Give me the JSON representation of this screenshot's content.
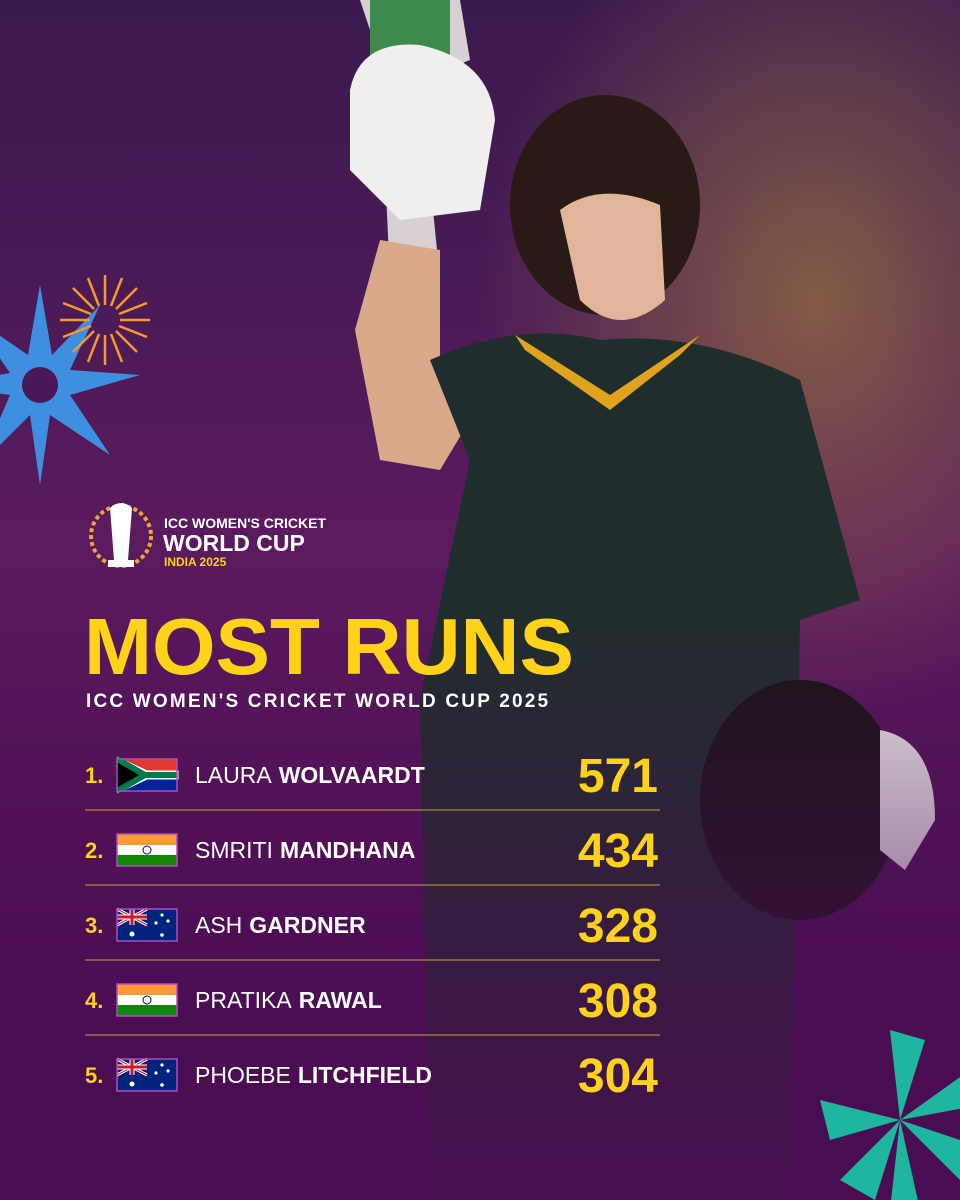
{
  "logo": {
    "line1": "ICC WOMEN'S CRICKET",
    "line2": "WORLD CUP",
    "line3": "INDIA 2025"
  },
  "title": "MOST RUNS",
  "subtitle": "ICC WOMEN'S CRICKET WORLD CUP 2025",
  "rows": [
    {
      "rank": "1.",
      "first": "LAURA",
      "last": "WOLVAARDT",
      "runs": "571"
    },
    {
      "rank": "2.",
      "first": "SMRITI",
      "last": "MANDHANA",
      "runs": "434"
    },
    {
      "rank": "3.",
      "first": "ASH",
      "last": "GARDNER",
      "runs": "328"
    },
    {
      "rank": "4.",
      "first": "PRATIKA",
      "last": "RAWAL",
      "runs": "308"
    },
    {
      "rank": "5.",
      "first": "PHOEBE",
      "last": "LITCHFIELD",
      "runs": "304"
    }
  ]
}
